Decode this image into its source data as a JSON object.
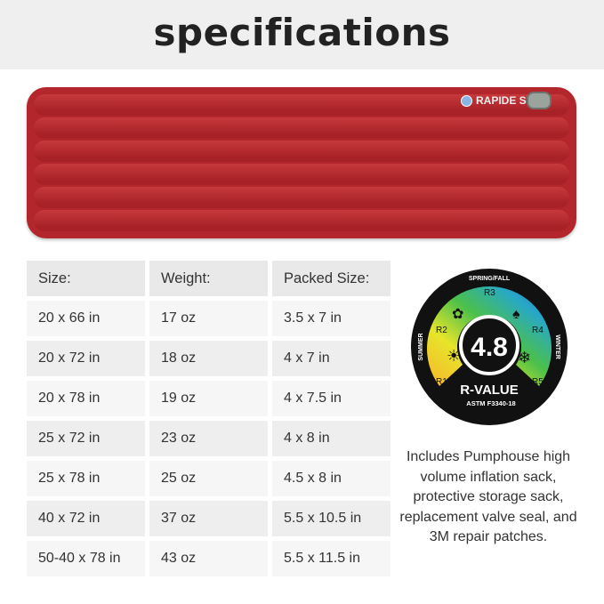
{
  "title": "specifications",
  "product": {
    "logo_text": "RAPIDE SL",
    "color": "#b3262b"
  },
  "table": {
    "headers": [
      "Size:",
      "Weight:",
      "Packed Size:"
    ],
    "rows": [
      [
        "20 x 66 in",
        "17 oz",
        "3.5 x 7 in"
      ],
      [
        "20 x 72 in",
        "18 oz",
        "4 x 7 in"
      ],
      [
        "20 x 78 in",
        "19 oz",
        "4 x 7.5 in"
      ],
      [
        "25 x 72 in",
        "23 oz",
        "4 x 8 in"
      ],
      [
        "25 x 78 in",
        "25 oz",
        "4.5 x 8 in"
      ],
      [
        "40 x 72 in",
        "37 oz",
        "5.5 x 10.5 in"
      ],
      [
        "50-40 x 78 in",
        "43 oz",
        "5.5 x 11.5 in"
      ]
    ]
  },
  "badge": {
    "value": "4.8",
    "label": "R-VALUE",
    "standard": "ASTM F3340-18",
    "top": "SPRING/FALL",
    "left": "SUMMER",
    "right": "WINTER",
    "levels": [
      "R1",
      "R2",
      "R3",
      "R4",
      "R5"
    ]
  },
  "note": "Includes Pumphouse high volume inflation sack, protective storage sack, replacement valve seal, and 3M repair patches."
}
